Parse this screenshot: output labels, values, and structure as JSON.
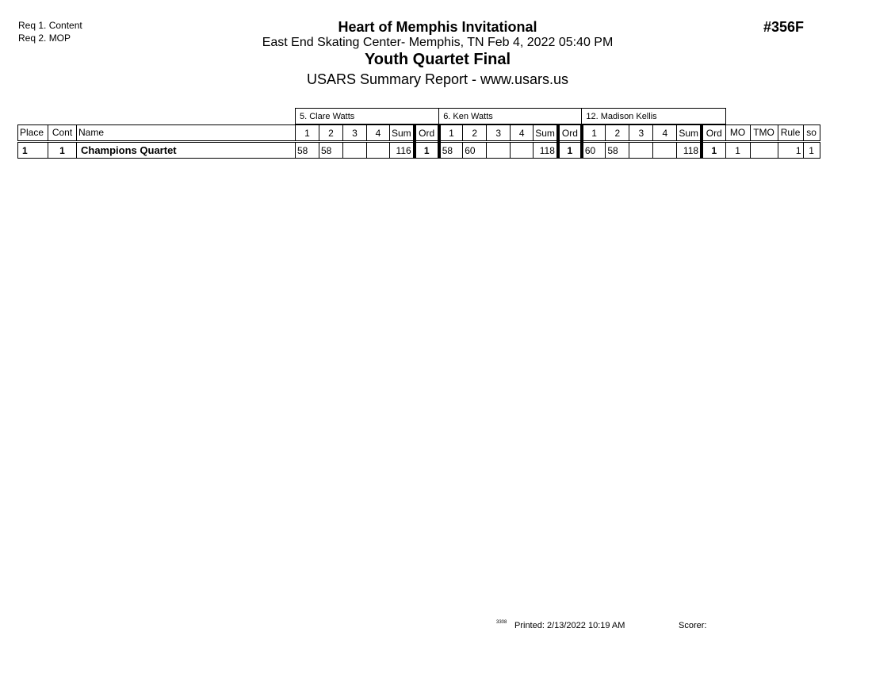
{
  "requirements": [
    "Req  1.  Content",
    "Req  2.  MOP"
  ],
  "header": {
    "title": "Heart of Memphis Invitational",
    "venue": "East End Skating Center- Memphis, TN  Feb 4, 2022  05:40 PM",
    "event": "Youth Quartet Final",
    "report": "USARS Summary Report - www.usars.us",
    "event_code": "#356F"
  },
  "table": {
    "judges": [
      "5.  Clare Watts",
      "6.  Ken Watts",
      "12.  Madison Kellis"
    ],
    "columns": {
      "place": "Place",
      "cont": "Cont",
      "name": "Name",
      "judge_cols": [
        "1",
        "2",
        "3",
        "4",
        "Sum",
        "Ord"
      ],
      "mo": "MO",
      "tmo": "TMO",
      "rule": "Rule",
      "so": "so"
    },
    "rows": [
      {
        "place": "1",
        "cont": "1",
        "name": "Champions Quartet",
        "judges": [
          [
            "58",
            "58",
            "",
            "",
            "116",
            "1"
          ],
          [
            "58",
            "60",
            "",
            "",
            "118",
            "1"
          ],
          [
            "60",
            "58",
            "",
            "",
            "118",
            "1"
          ]
        ],
        "mo": "1",
        "tmo": "",
        "rule": "1",
        "so": "1"
      }
    ]
  },
  "footer": {
    "code": "3308",
    "printed": "Printed:  2/13/2022  10:19 AM",
    "scorer": "Scorer:"
  }
}
